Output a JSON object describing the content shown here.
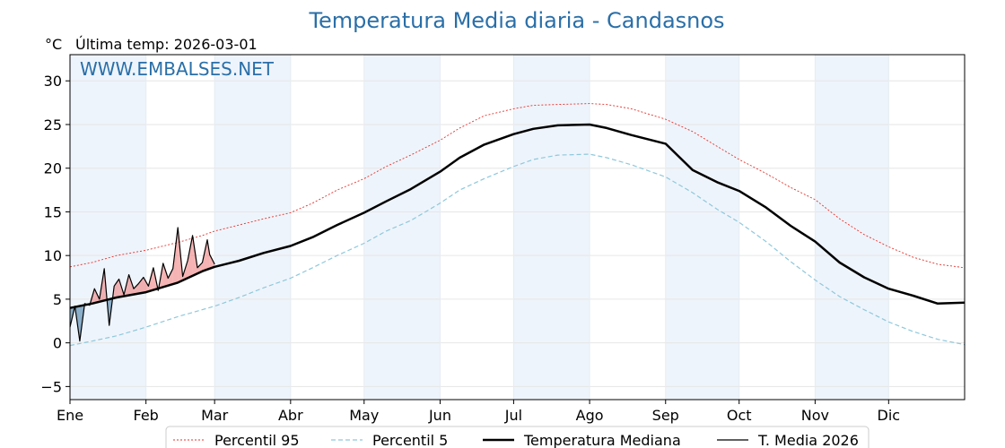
{
  "chart_data": {
    "type": "line",
    "title": "Temperatura Media diaria - Candasnos",
    "unit_label": "°C",
    "last_temp_label": "Última temp: 2026-03-01",
    "watermark": "WWW.EMBALSES.NET",
    "ylim": [
      -6.5,
      33
    ],
    "yticks": [
      -5,
      0,
      5,
      10,
      15,
      20,
      25,
      30
    ],
    "xlim": [
      1,
      366
    ],
    "month_labels": [
      "Ene",
      "Feb",
      "Mar",
      "Abr",
      "May",
      "Jun",
      "Jul",
      "Ago",
      "Sep",
      "Oct",
      "Nov",
      "Dic"
    ],
    "month_starts": [
      1,
      32,
      60,
      91,
      121,
      152,
      182,
      213,
      244,
      274,
      305,
      335
    ],
    "grid": true,
    "legend_position": "bottom",
    "colors": {
      "p95": "#e8302a",
      "p5": "#8ec8dc",
      "median": "#000000",
      "current": "#000000",
      "above_fill": "#f08080",
      "below_fill": "#4a7fa8",
      "band": "#eef4fb"
    },
    "series": [
      {
        "name": "Percentil 95",
        "x": [
          1,
          10,
          20,
          32,
          45,
          55,
          60,
          70,
          80,
          91,
          100,
          110,
          121,
          130,
          140,
          152,
          160,
          170,
          182,
          190,
          200,
          213,
          220,
          230,
          244,
          255,
          265,
          274,
          285,
          295,
          305,
          315,
          325,
          335,
          345,
          355,
          366
        ],
        "y": [
          8.7,
          9.2,
          10.0,
          10.6,
          11.5,
          12.3,
          12.8,
          13.5,
          14.2,
          14.9,
          16.0,
          17.5,
          18.8,
          20.2,
          21.5,
          23.2,
          24.6,
          26.0,
          26.8,
          27.2,
          27.3,
          27.4,
          27.3,
          26.8,
          25.6,
          24.2,
          22.5,
          21.0,
          19.4,
          17.8,
          16.4,
          14.2,
          12.4,
          11.0,
          9.8,
          9.0,
          8.6
        ]
      },
      {
        "name": "Percentil 5",
        "x": [
          1,
          10,
          20,
          32,
          45,
          55,
          60,
          70,
          80,
          91,
          100,
          110,
          121,
          130,
          140,
          152,
          160,
          170,
          182,
          190,
          200,
          213,
          220,
          230,
          244,
          255,
          265,
          274,
          285,
          295,
          305,
          315,
          325,
          335,
          345,
          355,
          366
        ],
        "y": [
          -0.3,
          0.2,
          0.8,
          1.8,
          3.0,
          3.8,
          4.2,
          5.2,
          6.3,
          7.4,
          8.6,
          10.0,
          11.4,
          12.8,
          14.0,
          16.0,
          17.5,
          18.8,
          20.2,
          21.0,
          21.5,
          21.6,
          21.2,
          20.4,
          19.0,
          17.2,
          15.3,
          13.8,
          11.6,
          9.3,
          7.2,
          5.3,
          3.8,
          2.4,
          1.3,
          0.4,
          -0.2
        ]
      },
      {
        "name": "Temperatura Mediana",
        "x": [
          1,
          10,
          20,
          32,
          45,
          55,
          60,
          70,
          80,
          91,
          100,
          110,
          121,
          130,
          140,
          152,
          160,
          170,
          182,
          190,
          200,
          213,
          220,
          230,
          244,
          255,
          265,
          274,
          285,
          295,
          305,
          315,
          325,
          335,
          345,
          355,
          366
        ],
        "y": [
          4.0,
          4.5,
          5.2,
          5.8,
          6.9,
          8.2,
          8.7,
          9.4,
          10.3,
          11.1,
          12.1,
          13.5,
          14.9,
          16.2,
          17.6,
          19.6,
          21.2,
          22.7,
          23.9,
          24.5,
          24.9,
          25.0,
          24.6,
          23.8,
          22.8,
          19.8,
          18.4,
          17.4,
          15.5,
          13.4,
          11.6,
          9.2,
          7.5,
          6.2,
          5.4,
          4.5,
          4.6
        ]
      },
      {
        "name": "T. Media 2026",
        "x": [
          1,
          3,
          5,
          7,
          9,
          11,
          13,
          15,
          17,
          19,
          21,
          23,
          25,
          27,
          29,
          31,
          33,
          35,
          37,
          39,
          41,
          43,
          45,
          47,
          49,
          51,
          53,
          55,
          57,
          58,
          60
        ],
        "y": [
          1.8,
          4.2,
          0.2,
          4.5,
          4.3,
          6.2,
          5.0,
          8.5,
          2.0,
          6.5,
          7.3,
          5.5,
          7.8,
          6.2,
          6.8,
          7.5,
          6.5,
          8.6,
          6.0,
          9.1,
          7.4,
          8.5,
          13.2,
          7.6,
          9.4,
          12.3,
          8.6,
          9.2,
          11.8,
          10.1,
          9.0
        ]
      }
    ]
  }
}
